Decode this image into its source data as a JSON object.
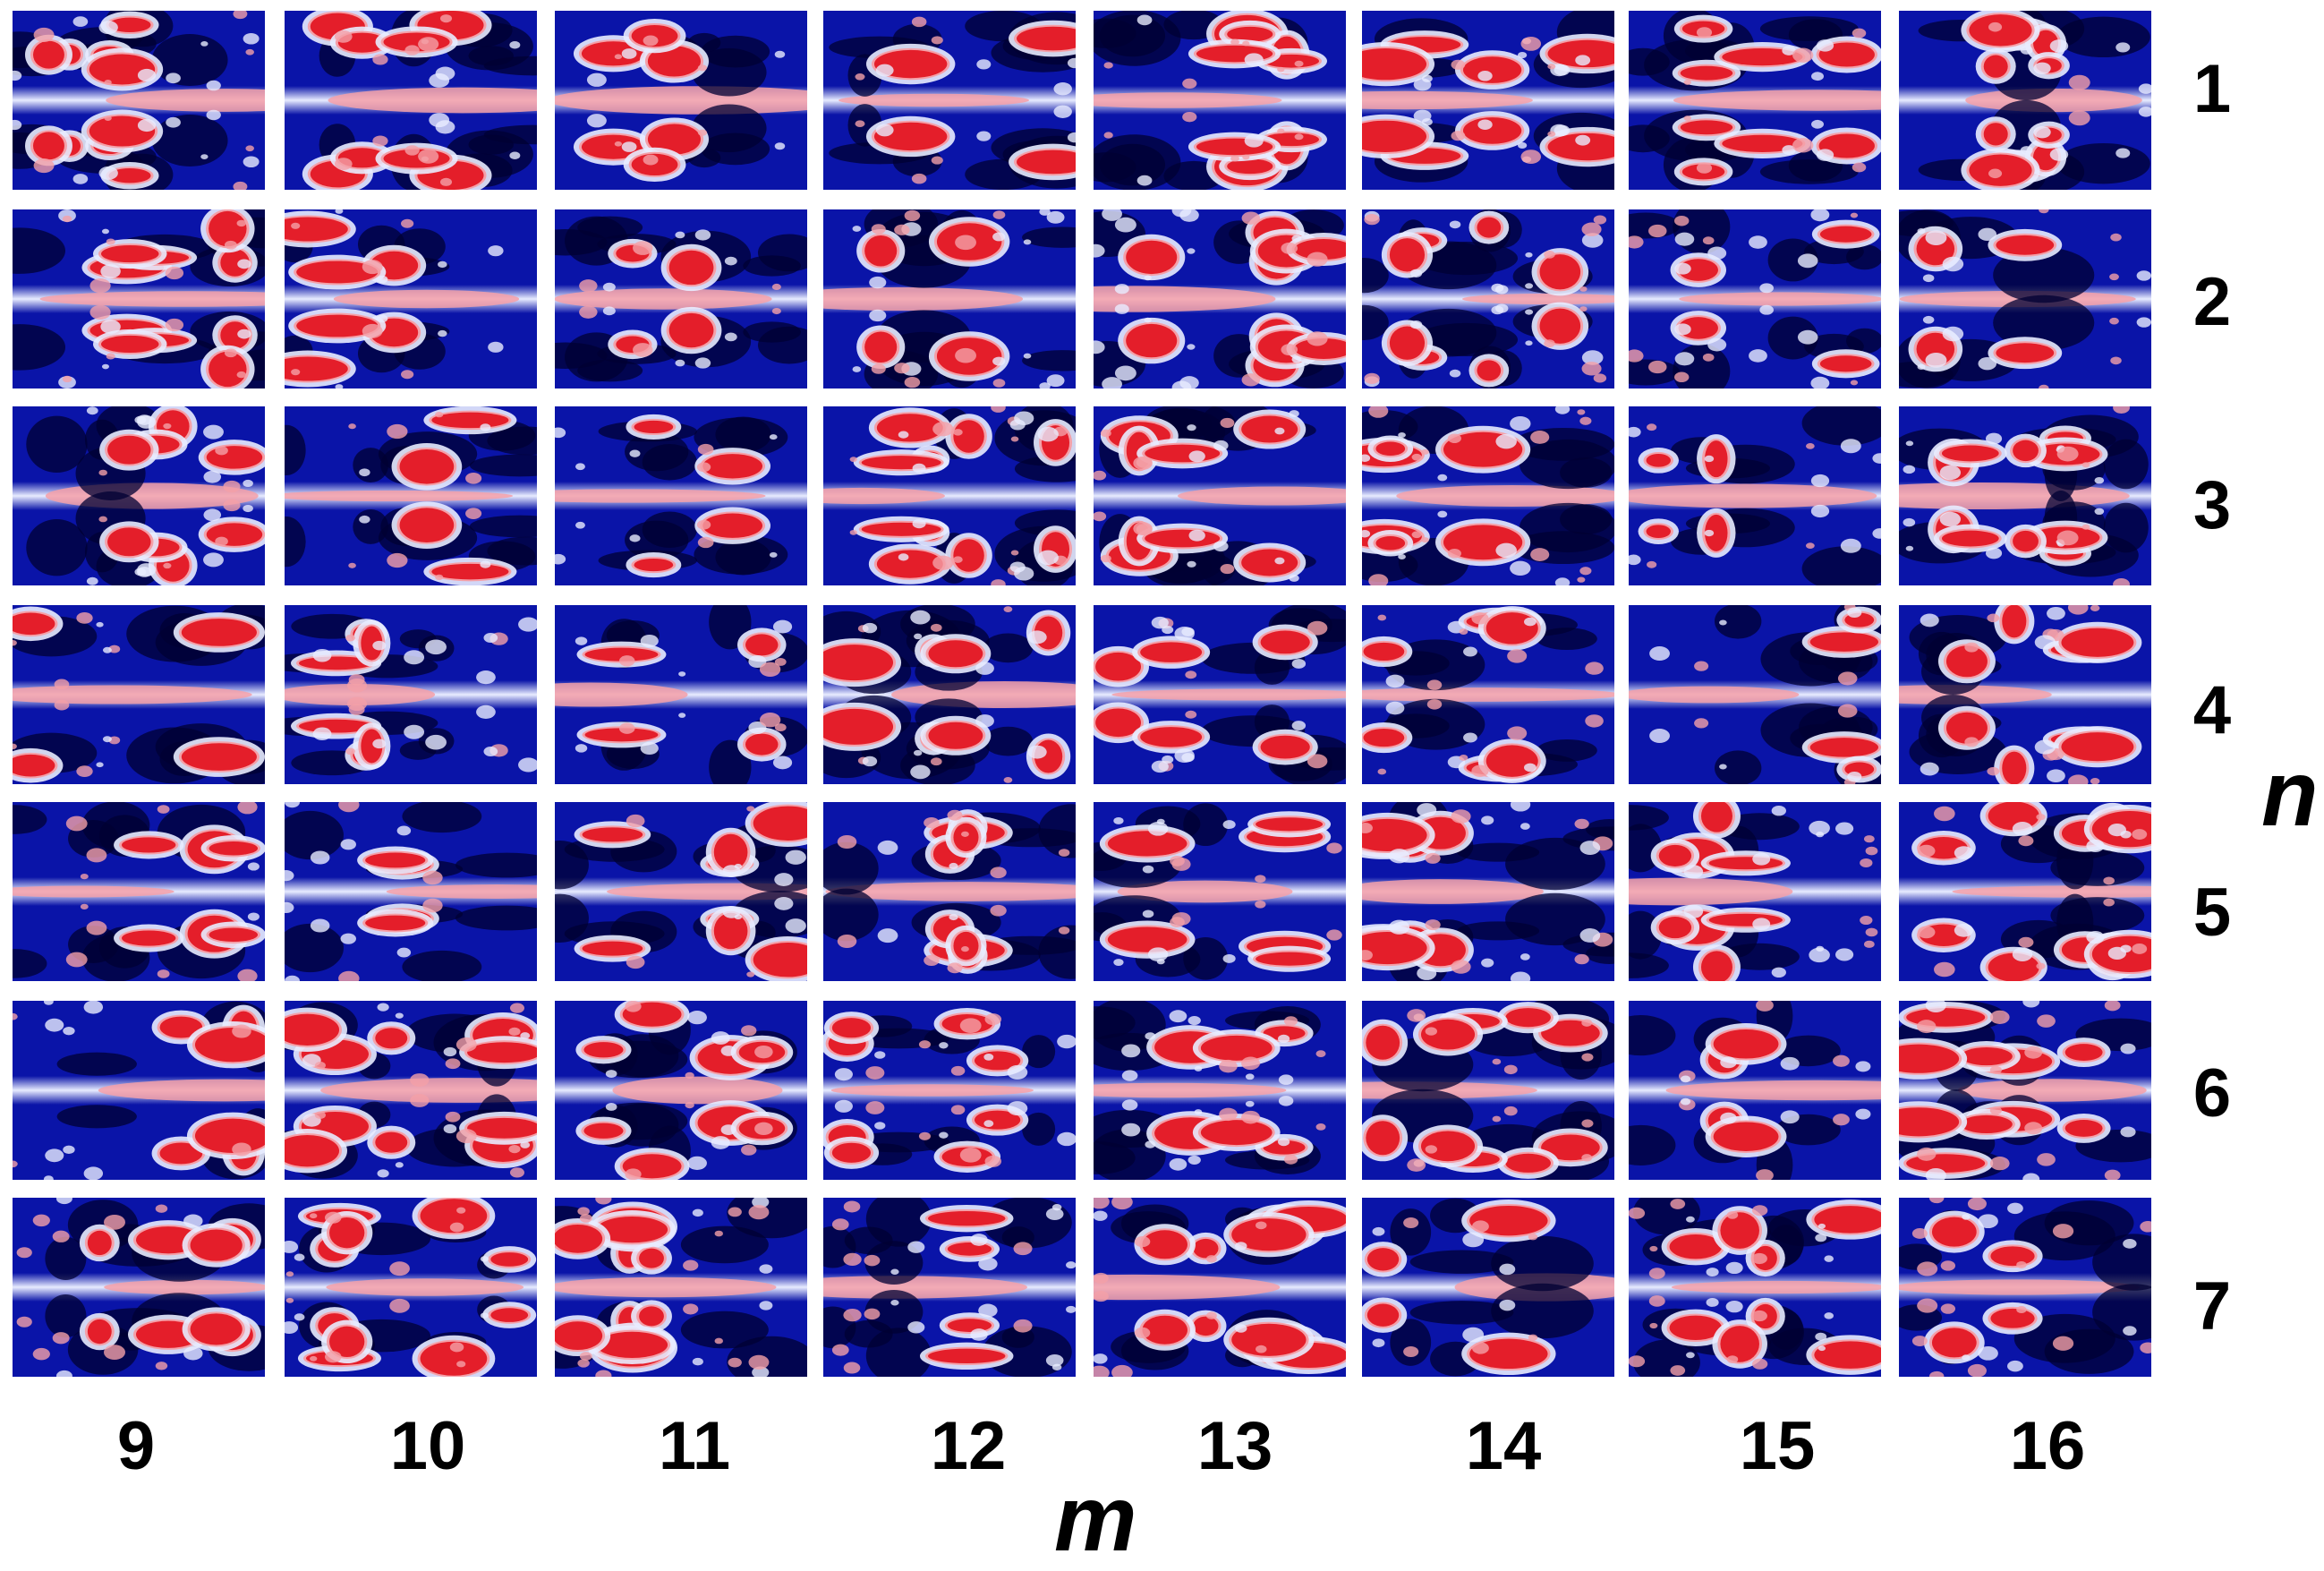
{
  "figure": {
    "x_axis_title": "m",
    "y_axis_title": "n",
    "m_values": [
      "9",
      "10",
      "11",
      "12",
      "13",
      "14",
      "15",
      "16"
    ],
    "n_values": [
      "1",
      "2",
      "3",
      "4",
      "5",
      "6",
      "7"
    ]
  },
  "colors": {
    "background": "#ffffff",
    "deep": "#000033",
    "blue": "#0a14a8",
    "light": "#e8ecff",
    "pink": "#f4a0a8",
    "red": "#e41e2a"
  },
  "tile_description": "mode-shape map"
}
